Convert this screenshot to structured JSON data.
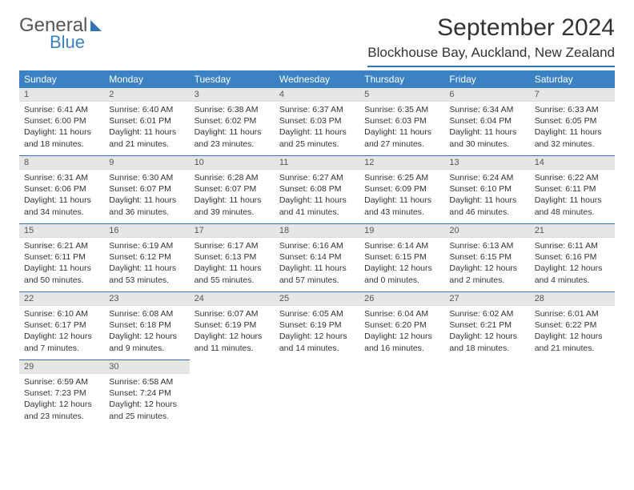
{
  "logo": {
    "text1": "General",
    "text2": "Blue"
  },
  "title": "September 2024",
  "location": "Blockhouse Bay, Auckland, New Zealand",
  "colors": {
    "header_bg": "#3b82c4",
    "rule": "#2f74b5",
    "daynum_bg": "#e6e6e6",
    "text": "#333333"
  },
  "weekdays": [
    "Sunday",
    "Monday",
    "Tuesday",
    "Wednesday",
    "Thursday",
    "Friday",
    "Saturday"
  ],
  "weeks": [
    [
      {
        "n": "1",
        "sr": "6:41 AM",
        "ss": "6:00 PM",
        "dl": "11 hours and 18 minutes."
      },
      {
        "n": "2",
        "sr": "6:40 AM",
        "ss": "6:01 PM",
        "dl": "11 hours and 21 minutes."
      },
      {
        "n": "3",
        "sr": "6:38 AM",
        "ss": "6:02 PM",
        "dl": "11 hours and 23 minutes."
      },
      {
        "n": "4",
        "sr": "6:37 AM",
        "ss": "6:03 PM",
        "dl": "11 hours and 25 minutes."
      },
      {
        "n": "5",
        "sr": "6:35 AM",
        "ss": "6:03 PM",
        "dl": "11 hours and 27 minutes."
      },
      {
        "n": "6",
        "sr": "6:34 AM",
        "ss": "6:04 PM",
        "dl": "11 hours and 30 minutes."
      },
      {
        "n": "7",
        "sr": "6:33 AM",
        "ss": "6:05 PM",
        "dl": "11 hours and 32 minutes."
      }
    ],
    [
      {
        "n": "8",
        "sr": "6:31 AM",
        "ss": "6:06 PM",
        "dl": "11 hours and 34 minutes."
      },
      {
        "n": "9",
        "sr": "6:30 AM",
        "ss": "6:07 PM",
        "dl": "11 hours and 36 minutes."
      },
      {
        "n": "10",
        "sr": "6:28 AM",
        "ss": "6:07 PM",
        "dl": "11 hours and 39 minutes."
      },
      {
        "n": "11",
        "sr": "6:27 AM",
        "ss": "6:08 PM",
        "dl": "11 hours and 41 minutes."
      },
      {
        "n": "12",
        "sr": "6:25 AM",
        "ss": "6:09 PM",
        "dl": "11 hours and 43 minutes."
      },
      {
        "n": "13",
        "sr": "6:24 AM",
        "ss": "6:10 PM",
        "dl": "11 hours and 46 minutes."
      },
      {
        "n": "14",
        "sr": "6:22 AM",
        "ss": "6:11 PM",
        "dl": "11 hours and 48 minutes."
      }
    ],
    [
      {
        "n": "15",
        "sr": "6:21 AM",
        "ss": "6:11 PM",
        "dl": "11 hours and 50 minutes."
      },
      {
        "n": "16",
        "sr": "6:19 AM",
        "ss": "6:12 PM",
        "dl": "11 hours and 53 minutes."
      },
      {
        "n": "17",
        "sr": "6:17 AM",
        "ss": "6:13 PM",
        "dl": "11 hours and 55 minutes."
      },
      {
        "n": "18",
        "sr": "6:16 AM",
        "ss": "6:14 PM",
        "dl": "11 hours and 57 minutes."
      },
      {
        "n": "19",
        "sr": "6:14 AM",
        "ss": "6:15 PM",
        "dl": "12 hours and 0 minutes."
      },
      {
        "n": "20",
        "sr": "6:13 AM",
        "ss": "6:15 PM",
        "dl": "12 hours and 2 minutes."
      },
      {
        "n": "21",
        "sr": "6:11 AM",
        "ss": "6:16 PM",
        "dl": "12 hours and 4 minutes."
      }
    ],
    [
      {
        "n": "22",
        "sr": "6:10 AM",
        "ss": "6:17 PM",
        "dl": "12 hours and 7 minutes."
      },
      {
        "n": "23",
        "sr": "6:08 AM",
        "ss": "6:18 PM",
        "dl": "12 hours and 9 minutes."
      },
      {
        "n": "24",
        "sr": "6:07 AM",
        "ss": "6:19 PM",
        "dl": "12 hours and 11 minutes."
      },
      {
        "n": "25",
        "sr": "6:05 AM",
        "ss": "6:19 PM",
        "dl": "12 hours and 14 minutes."
      },
      {
        "n": "26",
        "sr": "6:04 AM",
        "ss": "6:20 PM",
        "dl": "12 hours and 16 minutes."
      },
      {
        "n": "27",
        "sr": "6:02 AM",
        "ss": "6:21 PM",
        "dl": "12 hours and 18 minutes."
      },
      {
        "n": "28",
        "sr": "6:01 AM",
        "ss": "6:22 PM",
        "dl": "12 hours and 21 minutes."
      }
    ],
    [
      {
        "n": "29",
        "sr": "6:59 AM",
        "ss": "7:23 PM",
        "dl": "12 hours and 23 minutes."
      },
      {
        "n": "30",
        "sr": "6:58 AM",
        "ss": "7:24 PM",
        "dl": "12 hours and 25 minutes."
      },
      null,
      null,
      null,
      null,
      null
    ]
  ]
}
